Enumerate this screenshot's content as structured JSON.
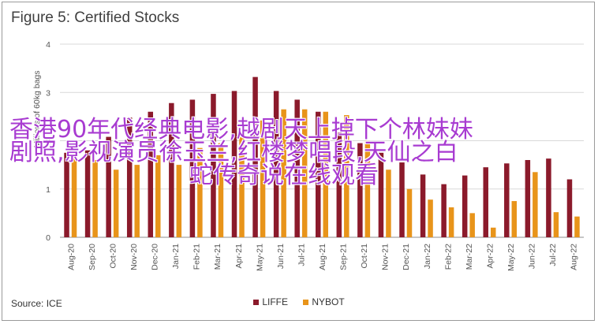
{
  "chart_data": {
    "type": "bar",
    "title": "Figure 5: Certified Stocks",
    "ylabel": "Millions of 60kg bags",
    "xlabel": "",
    "ylim": [
      0,
      4
    ],
    "yticks": [
      0,
      1,
      2,
      3,
      4
    ],
    "grid": true,
    "legend_position": "bottom",
    "categories": [
      "Aug-20",
      "Sep-20",
      "Oct-20",
      "Nov-20",
      "Dec-20",
      "Jan-21",
      "Feb-21",
      "Mar-21",
      "Apr-21",
      "May-21",
      "Jun-21",
      "Jul-21",
      "Aug-21",
      "Sep-21",
      "Oct-21",
      "Nov-21",
      "Dec-21",
      "Jan-22",
      "Feb-22",
      "Mar-22",
      "Apr-22",
      "May-22",
      "Jun-22",
      "Jul-22",
      "Aug-22"
    ],
    "series": [
      {
        "name": "LIFFE",
        "color": "#8b1a2b",
        "values": [
          1.75,
          1.8,
          2.08,
          2.48,
          2.6,
          2.78,
          2.85,
          2.97,
          3.03,
          3.32,
          3.03,
          2.85,
          2.6,
          2.17,
          1.95,
          1.75,
          1.55,
          1.3,
          1.1,
          1.28,
          1.45,
          1.53,
          1.6,
          1.63,
          1.2
        ]
      },
      {
        "name": "NYBOT",
        "color": "#e8941a",
        "values": [
          1.65,
          1.6,
          1.4,
          1.5,
          1.7,
          1.5,
          1.85,
          1.95,
          2.12,
          2.42,
          2.65,
          2.65,
          2.6,
          2.53,
          2.0,
          1.4,
          1.0,
          0.78,
          0.62,
          0.5,
          0.2,
          0.75,
          1.35,
          0.52,
          0.43
        ]
      }
    ],
    "source": "Source: ICE"
  },
  "overlay_text": {
    "line1": "香港90年代经典电影,越剧天上掉下个林妹妹",
    "line2": "剧照,影视演员徐玉兰,红楼梦唱段,天仙之白",
    "line3": "蛇传奇说在线观看"
  }
}
